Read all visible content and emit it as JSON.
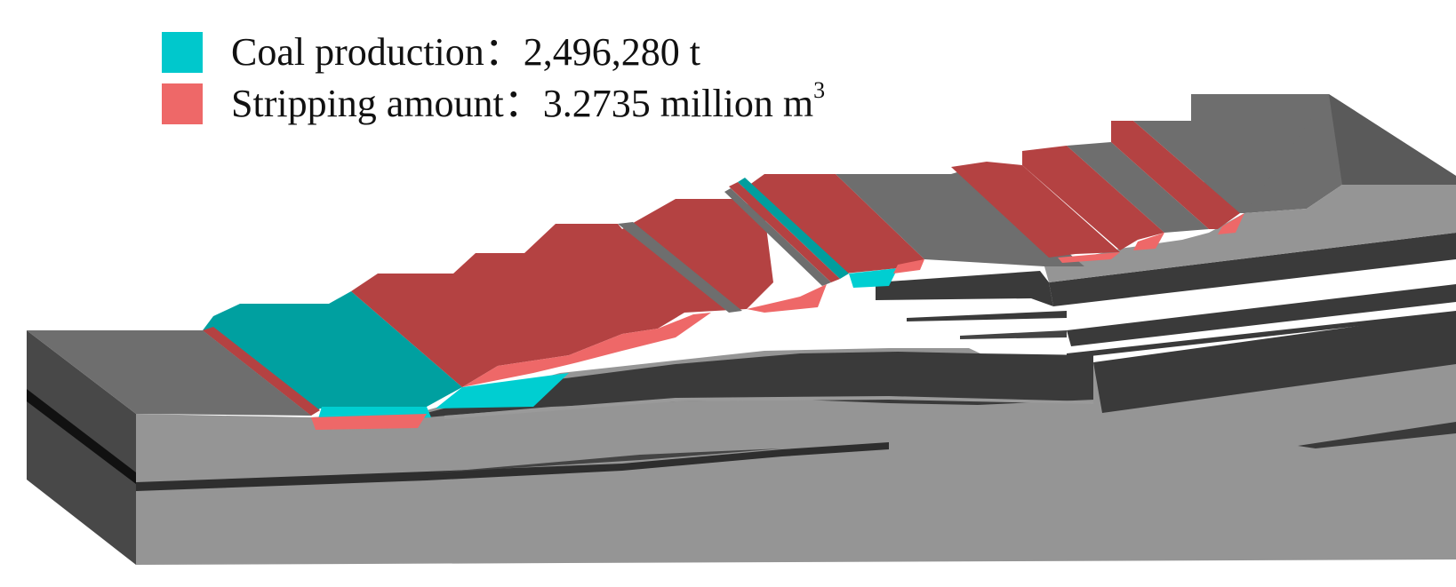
{
  "legend": {
    "coal": {
      "label": "Coal production",
      "separator": "：",
      "value": "2,496,280 t",
      "color": "#00C8CC"
    },
    "stripping": {
      "label": "Stripping amount",
      "separator": "：",
      "value": "3.2735 million m",
      "superscript": "3",
      "color": "#EE6868"
    }
  },
  "colors": {
    "coal_top": "#00A0A0",
    "coal_face": "#00CED1",
    "stripping_top": "#B44242",
    "stripping_face": "#EE6868",
    "ground_top": "#6E6E6E",
    "block_front": "#959595",
    "block_side": "#484848",
    "seam": "#3A3A3A"
  }
}
